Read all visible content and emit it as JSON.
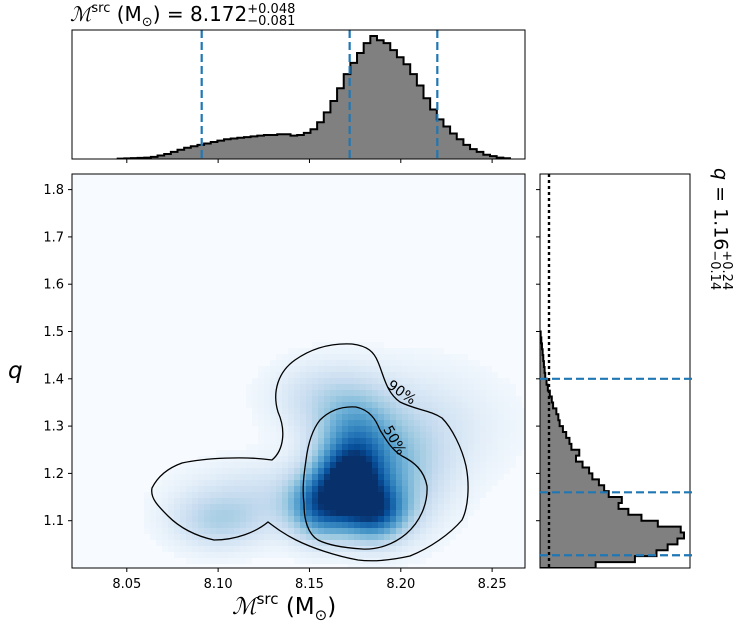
{
  "chart_data": [
    {
      "type": "heatmap",
      "subtype": "2d-density-with-contours",
      "xlabel": "ℳsrc (M⊙)",
      "ylabel": "q",
      "xlim": [
        8.02,
        8.268
      ],
      "ylim": [
        1.0,
        1.833
      ],
      "xticks": [
        "8.05",
        "8.10",
        "8.15",
        "8.20",
        "8.25"
      ],
      "yticks": [
        "1.1",
        "1.2",
        "1.3",
        "1.4",
        "1.5",
        "1.6",
        "1.7",
        "1.8"
      ],
      "contour_labels": [
        "90%",
        "50%"
      ],
      "density_peaks": [
        {
          "x": 8.172,
          "y": 1.19
        },
        {
          "x": 8.185,
          "y": 1.12
        },
        {
          "x": 8.157,
          "y": 1.13
        },
        {
          "x": 8.1,
          "y": 1.1
        }
      ],
      "colormap": "Blues",
      "contour_color": "#000000",
      "grid": false
    },
    {
      "type": "bar",
      "subtype": "step-histogram",
      "title": "ℳsrc (M⊙) = 8.172",
      "title_value": "8.172",
      "title_upper": "+0.048",
      "title_lower": "−0.081",
      "xlim": [
        8.02,
        8.268
      ],
      "bin_edges_start": 8.045,
      "bin_width": 0.00364,
      "counts": [
        0.3,
        0.4,
        0.6,
        0.8,
        1.0,
        1.5,
        2.5,
        3.5,
        5,
        6.5,
        8,
        9,
        10,
        11,
        12,
        13,
        14,
        14.5,
        15,
        15.5,
        16,
        16.5,
        17,
        17,
        17.5,
        17.5,
        16.5,
        17,
        18.5,
        21,
        26,
        33,
        41,
        50,
        60,
        68,
        75,
        82,
        87,
        84,
        82,
        77,
        72,
        67,
        60,
        52,
        43,
        35,
        28,
        23,
        18,
        14,
        10,
        7,
        5,
        3,
        2,
        1,
        0.5
      ],
      "quantile_lines": [
        8.091,
        8.172,
        8.22
      ],
      "quantile_color": "#1f77b4",
      "fill_color": "#808080"
    },
    {
      "type": "bar",
      "subtype": "horizontal-step-histogram",
      "title": "q = 1.16",
      "title_value": "1.16",
      "title_upper": "+0.24",
      "title_lower": "−0.14",
      "ylim": [
        1.0,
        1.833
      ],
      "bin_edges_start": 1.0,
      "bin_width": 0.0125,
      "counts": [
        8.5,
        14.5,
        17.8,
        19.5,
        21,
        22,
        21.5,
        18,
        15.5,
        13.5,
        12,
        12.5,
        10.5,
        9.8,
        9,
        8,
        7.5,
        6.5,
        5.5,
        6,
        4.8,
        4.5,
        4,
        3.5,
        3,
        2.8,
        2.5,
        2,
        1.8,
        1.5,
        1.2,
        1,
        0.8,
        0.7,
        0.6,
        0.5,
        0.4,
        0.3,
        0.2,
        0.1
      ],
      "quantile_lines": [
        1.027,
        1.16,
        1.4
      ],
      "reference_line": 1.0,
      "quantile_color": "#1f77b4",
      "fill_color": "#808080"
    }
  ]
}
